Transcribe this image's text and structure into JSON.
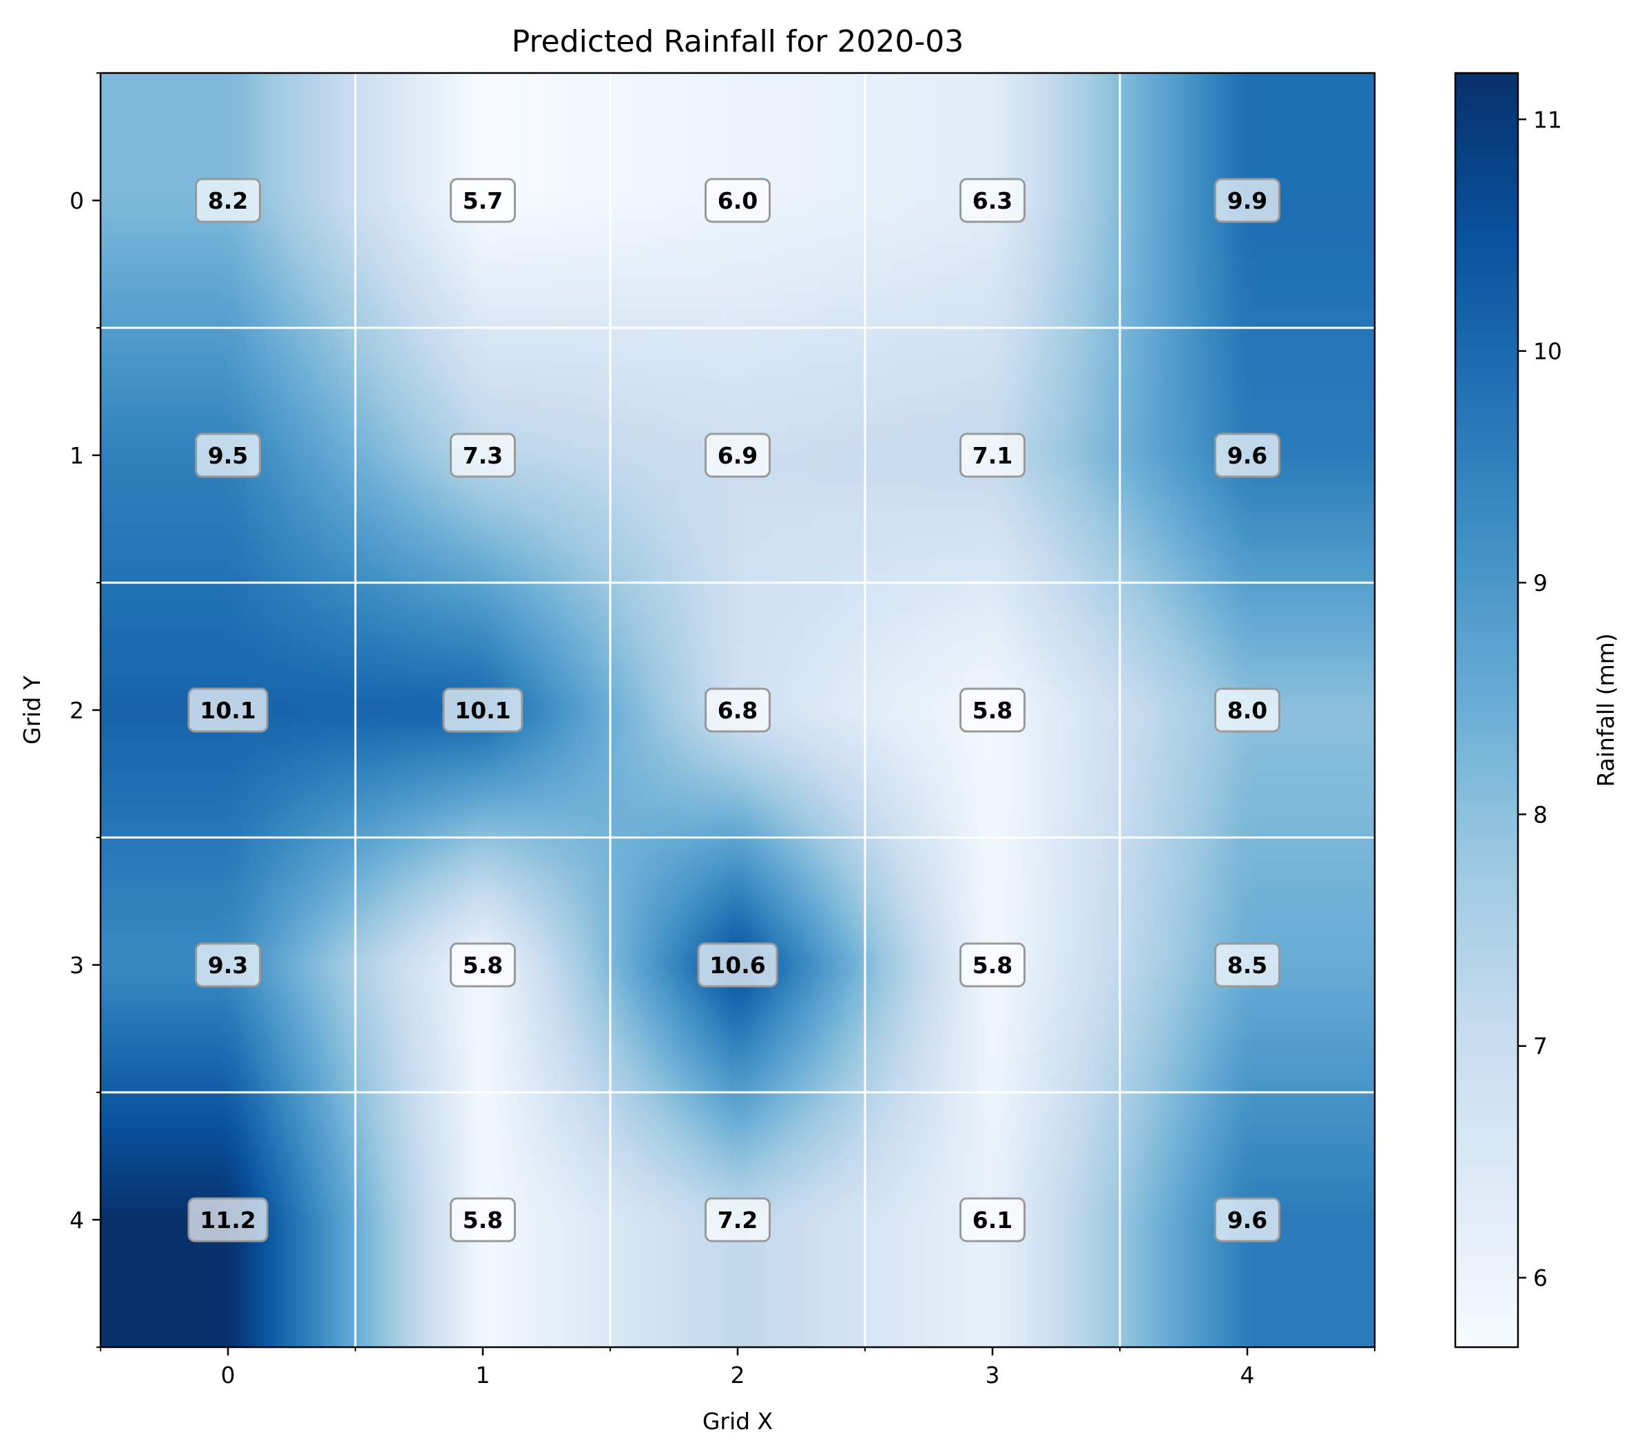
{
  "chart_data": {
    "type": "heatmap",
    "title": "Predicted Rainfall for 2020-03",
    "xlabel": "Grid X",
    "ylabel": "Grid Y",
    "colorbar_label": "Rainfall (mm)",
    "x_categories": [
      "0",
      "1",
      "2",
      "3",
      "4"
    ],
    "y_categories": [
      "0",
      "1",
      "2",
      "3",
      "4"
    ],
    "values": [
      [
        8.2,
        5.7,
        6.0,
        6.3,
        9.9
      ],
      [
        9.5,
        7.3,
        6.9,
        7.1,
        9.6
      ],
      [
        10.1,
        10.1,
        6.8,
        5.8,
        8.0
      ],
      [
        9.3,
        5.8,
        10.6,
        5.8,
        8.5
      ],
      [
        11.2,
        5.8,
        7.2,
        6.1,
        9.6
      ]
    ],
    "color_range": [
      5.7,
      11.2
    ],
    "colorbar_ticks": [
      "6",
      "7",
      "8",
      "9",
      "10",
      "11"
    ],
    "colormap": "Blues",
    "grid": true,
    "grid_color": "#ffffff"
  }
}
